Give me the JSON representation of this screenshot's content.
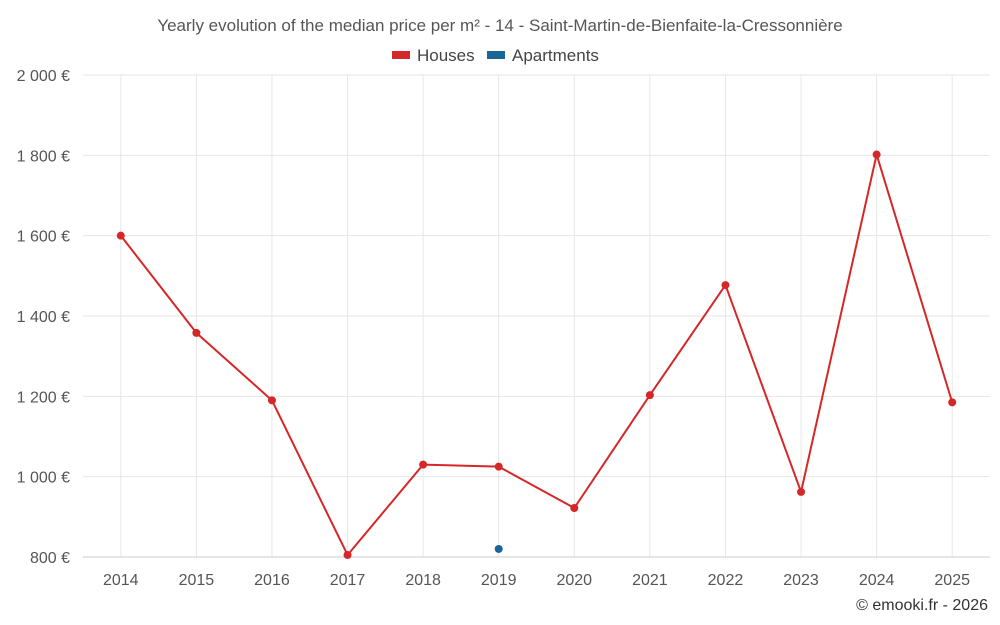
{
  "chart_data": {
    "type": "line",
    "title": "Yearly evolution of the median price per m² - 14 - Saint-Martin-de-Bienfaite-la-Cressonnière",
    "categories": [
      "2014",
      "2015",
      "2016",
      "2017",
      "2018",
      "2019",
      "2020",
      "2021",
      "2022",
      "2023",
      "2024",
      "2025"
    ],
    "series": [
      {
        "name": "Houses",
        "color": "#d62728",
        "values": [
          1600,
          1358,
          1190,
          805,
          1030,
          1025,
          922,
          1203,
          1477,
          962,
          1802,
          1185
        ]
      },
      {
        "name": "Apartments",
        "color": "#1a6496",
        "values": [
          null,
          null,
          null,
          null,
          null,
          820,
          null,
          null,
          null,
          null,
          null,
          null
        ]
      }
    ],
    "y_ticks": [
      "800 €",
      "1 000 €",
      "1 200 €",
      "1 400 €",
      "1 600 €",
      "1 800 €",
      "2 000 €"
    ],
    "y_tick_values": [
      800,
      1000,
      1200,
      1400,
      1600,
      1800,
      2000
    ],
    "ylim": [
      800,
      2000
    ],
    "xlabel": "",
    "ylabel": "",
    "grid": true,
    "legend_position": "top-center"
  },
  "footer": {
    "credit": "© emooki.fr - 2026"
  }
}
